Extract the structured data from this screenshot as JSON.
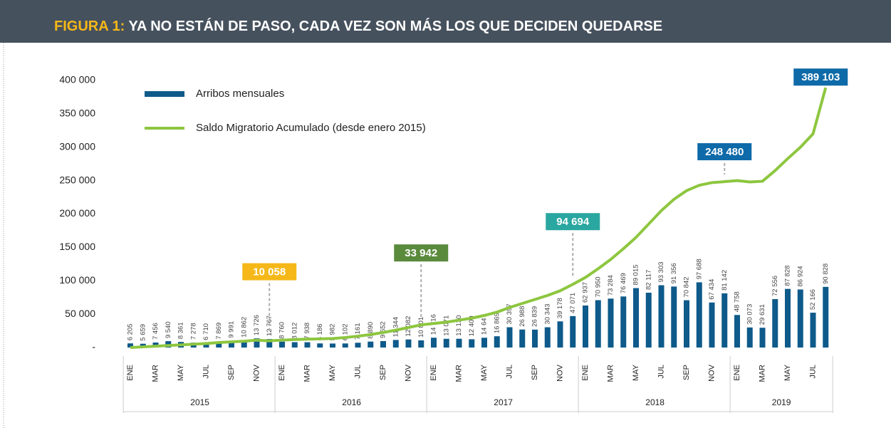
{
  "chart_data": {
    "type": "bar_line",
    "title_prefix": "FIGURA 1:",
    "title": "YA NO ESTÁN DE PASO, CADA VEZ SON MÁS LOS QUE DECIDEN QUEDARSE",
    "categories": [
      "ENE",
      null,
      "MAR",
      null,
      "MAY",
      null,
      "JUL",
      null,
      "SEP",
      null,
      "NOV",
      null,
      "ENE",
      null,
      "MAR",
      null,
      "MAY",
      null,
      "JUL",
      null,
      "SEP",
      null,
      "NOV",
      null,
      "ENE",
      null,
      "MAR",
      null,
      "MAY",
      null,
      "JUL",
      null,
      "SEP",
      null,
      "NOV",
      null,
      "ENE",
      null,
      "MAR",
      null,
      "MAY",
      null,
      "JUL",
      null,
      "SEP",
      null,
      "NOV",
      null,
      "ENE",
      null,
      "MAR",
      null,
      "MAY",
      null,
      "JUL",
      null
    ],
    "year_groups": [
      "2015",
      "2016",
      "2017",
      "2018",
      "2019"
    ],
    "series": [
      {
        "name": "Arribos mensuales",
        "type": "bar",
        "color": "#0e5a8a",
        "values": [
          6205,
          5659,
          7456,
          9540,
          8361,
          7278,
          6710,
          7869,
          9991,
          10862,
          13726,
          12767,
          8760,
          8012,
          7938,
          6186,
          5982,
          6102,
          7161,
          8890,
          9652,
          11344,
          12082,
          10801,
          14716,
          13071,
          13130,
          12400,
          14647,
          16869,
          30397,
          26988,
          26839,
          30343,
          39178,
          47071,
          62937,
          70950,
          73284,
          76469,
          89015,
          82117,
          93303,
          91356,
          70842,
          97688,
          67434,
          81142,
          48758,
          30073,
          29631,
          72556,
          87828,
          86924,
          52166,
          90828
        ],
        "value_labels": [
          "6 205",
          "5 659",
          "7 456",
          "9 540",
          "8 361",
          "7 278",
          "6 710",
          "7 869",
          "9 991",
          "10 862",
          "13 726",
          "12 767",
          "8 760",
          "8 012",
          "7 938",
          "6 186",
          "5 982",
          "6 102",
          "7 161",
          "8 890",
          "9 652",
          "11 344",
          "12 082",
          "10 801",
          "14 716",
          "13 071",
          "13 130",
          "12 400",
          "14 647",
          "16 869",
          "30 397",
          "26 988",
          "26 839",
          "30 343",
          "39 178",
          "47 071",
          "62 937",
          "70 950",
          "73 284",
          "76 469",
          "89 015",
          "82 117",
          "93 303",
          "91 356",
          "70 842",
          "97 688",
          "67 434",
          "81 142",
          "48 758",
          "30 073",
          "29 631",
          "72 556",
          "87 828",
          "86 924",
          "52 166",
          "90 828"
        ]
      },
      {
        "name": "Saldo Migratorio Acumulado (desde enero 2015)",
        "type": "line",
        "color": "#8dc63f",
        "values": [
          0,
          1000,
          2000,
          3000,
          4000,
          5000,
          6000,
          7500,
          8500,
          9500,
          11000,
          10058,
          11000,
          12000,
          12500,
          13000,
          13500,
          15000,
          17000,
          19500,
          22500,
          26000,
          30000,
          33942,
          36000,
          38000,
          41000,
          44000,
          48000,
          53000,
          60000,
          66000,
          72000,
          78000,
          85000,
          94694,
          105000,
          118000,
          132000,
          148000,
          165000,
          185000,
          205000,
          222000,
          235000,
          243000,
          247000,
          248480,
          250000,
          248000,
          249000,
          265000,
          283000,
          300000,
          320000,
          389103
        ],
        "value_labels": [
          null,
          null,
          null,
          null,
          null,
          null,
          null,
          null,
          null,
          null,
          null,
          "10 058",
          null,
          null,
          null,
          null,
          null,
          null,
          null,
          null,
          null,
          null,
          null,
          "33 942",
          null,
          null,
          null,
          null,
          null,
          null,
          null,
          null,
          null,
          null,
          null,
          "94 694",
          null,
          null,
          null,
          null,
          null,
          null,
          null,
          null,
          null,
          null,
          null,
          "248 480",
          null,
          null,
          null,
          null,
          null,
          null,
          null,
          "389 103"
        ],
        "label_colors": [
          "#f5b818",
          "#5a8a3c",
          "#2aa7a0",
          "#0e6aa8",
          "#0e6aa8"
        ]
      }
    ],
    "ylim": [
      0,
      400000
    ],
    "yticks": [
      {
        "value": 0,
        "label": "-"
      },
      {
        "value": 50000,
        "label": "50 000"
      },
      {
        "value": 100000,
        "label": "100 000"
      },
      {
        "value": 150000,
        "label": "150 000"
      },
      {
        "value": 200000,
        "label": "200 000"
      },
      {
        "value": 250000,
        "label": "250 000"
      },
      {
        "value": 300000,
        "label": "300 000"
      },
      {
        "value": 350000,
        "label": "350 000"
      },
      {
        "value": 400000,
        "label": "400 000"
      }
    ],
    "grid": false,
    "legend": "top-left"
  }
}
